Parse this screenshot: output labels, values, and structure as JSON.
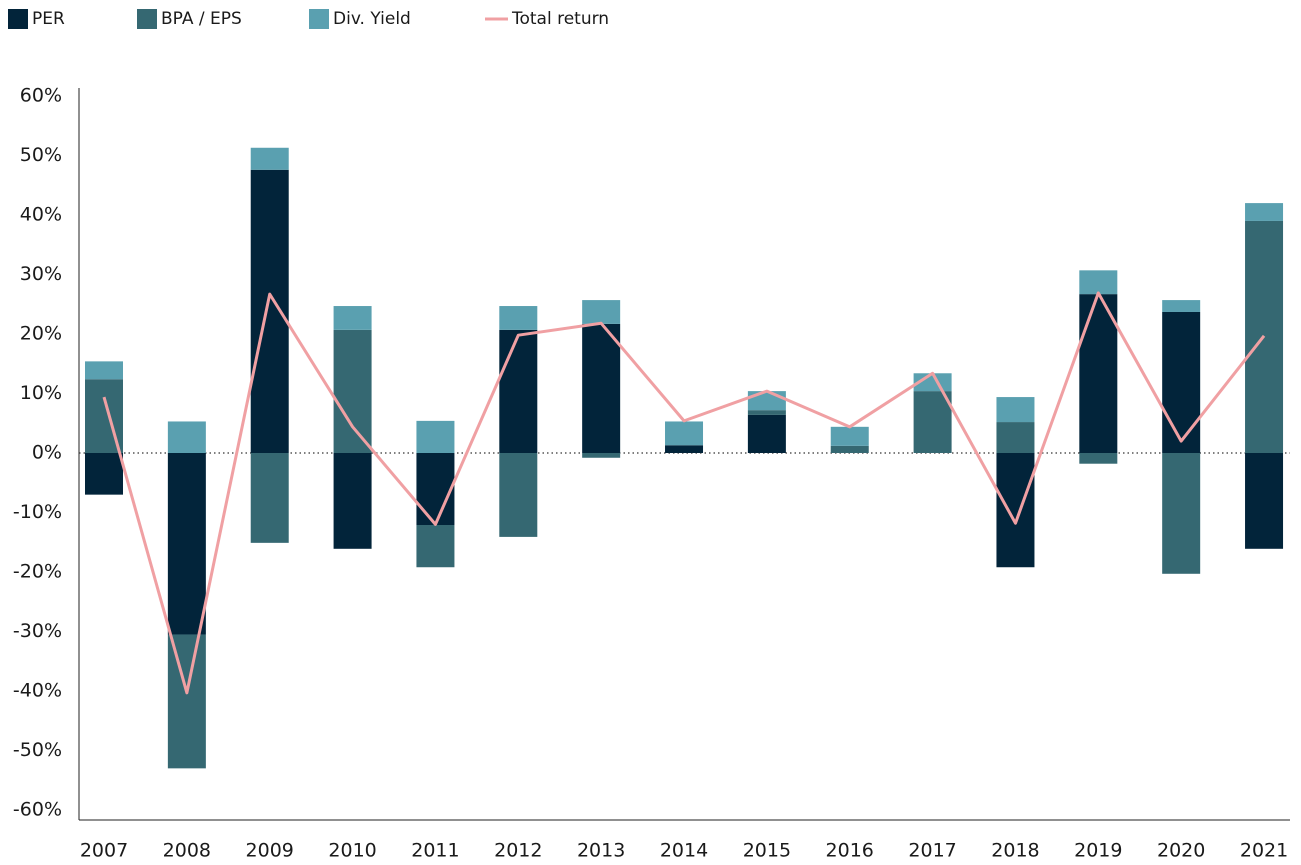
{
  "chart_data": {
    "type": "stacked_bar_line",
    "categories": [
      "2007",
      "2008",
      "2009",
      "2010",
      "2011",
      "2012",
      "2013",
      "2014",
      "2015",
      "2016",
      "2017",
      "2018",
      "2019",
      "2020",
      "2021"
    ],
    "series": [
      {
        "name": "PER",
        "color": "#02243a",
        "values": [
          -7,
          -30.5,
          47.6,
          -16.1,
          -12.1,
          20.7,
          21.7,
          1.3,
          6.4,
          0,
          0,
          -19.2,
          26.7,
          23.7,
          -16.1
        ]
      },
      {
        "name": "BPA / EPS",
        "color": "#356872",
        "values": [
          12.4,
          -22.5,
          -15.1,
          20.7,
          -7.1,
          -14.1,
          -0.8,
          0,
          0.8,
          1.2,
          10.4,
          5.2,
          -1.8,
          -20.3,
          39
        ]
      },
      {
        "name": "Div. Yield",
        "color": "#5aa0b0",
        "values": [
          3,
          5.3,
          3.7,
          4,
          5.4,
          4,
          4,
          4,
          3.2,
          3.2,
          3,
          4.2,
          4,
          2,
          3
        ]
      },
      {
        "name": "Total return",
        "color": "#f0a0a3",
        "type": "line",
        "values": [
          9.4,
          -40.3,
          26.7,
          4.4,
          -12,
          19.8,
          21.8,
          5.4,
          10.4,
          4.4,
          13.4,
          -11.8,
          26.9,
          2,
          19.7
        ]
      }
    ],
    "ylim": [
      -60,
      60
    ],
    "yticks": [
      {
        "value": 60,
        "label": "60%"
      },
      {
        "value": 50,
        "label": "50%"
      },
      {
        "value": 40,
        "label": "40%"
      },
      {
        "value": 30,
        "label": "30%"
      },
      {
        "value": 20,
        "label": "20%"
      },
      {
        "value": 10,
        "label": "10%"
      },
      {
        "value": 0,
        "label": "0%"
      },
      {
        "value": -10,
        "label": "-10%"
      },
      {
        "value": -20,
        "label": "-20%"
      },
      {
        "value": -30,
        "label": "-30%"
      },
      {
        "value": -40,
        "label": "-40%"
      },
      {
        "value": -50,
        "label": "-50%"
      },
      {
        "value": -60,
        "label": "-60%"
      }
    ],
    "legend": "top-left"
  }
}
